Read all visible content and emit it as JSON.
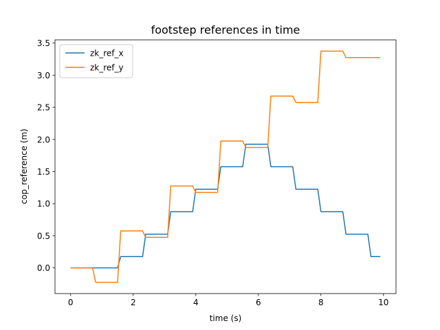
{
  "chart_data": {
    "type": "line",
    "title": "footstep references in time",
    "xlabel": "time (s)",
    "ylabel": "cop_reference (m)",
    "xlim": [
      -0.5,
      10.4
    ],
    "ylim": [
      -0.4,
      3.55
    ],
    "xticks": [
      0,
      2,
      4,
      6,
      8,
      10
    ],
    "xtick_labels": [
      "0",
      "2",
      "4",
      "6",
      "8",
      "10"
    ],
    "yticks": [
      0.0,
      0.5,
      1.0,
      1.5,
      2.0,
      2.5,
      3.0,
      3.5
    ],
    "ytick_labels": [
      "0.0",
      "0.5",
      "1.0",
      "1.5",
      "2.0",
      "2.5",
      "3.0",
      "3.5"
    ],
    "grid": false,
    "legend_position": "upper-left",
    "series": [
      {
        "name": "zk_ref_x",
        "color": "#1f77b4",
        "x": [
          0,
          1.5,
          1.6,
          2.3,
          2.4,
          3.1,
          3.2,
          3.9,
          4.0,
          4.7,
          4.8,
          5.5,
          5.6,
          6.3,
          6.4,
          7.1,
          7.2,
          7.9,
          8.0,
          8.7,
          8.8,
          9.5,
          9.6,
          9.9
        ],
        "y": [
          0,
          0,
          0.175,
          0.175,
          0.525,
          0.525,
          0.875,
          0.875,
          1.225,
          1.225,
          1.575,
          1.575,
          1.925,
          1.925,
          1.575,
          1.575,
          1.225,
          1.225,
          0.875,
          0.875,
          0.525,
          0.525,
          0.175,
          0.175
        ]
      },
      {
        "name": "zk_ref_y",
        "color": "#ff7f0e",
        "x": [
          0,
          0.7,
          0.8,
          1.5,
          1.6,
          2.3,
          2.4,
          3.1,
          3.2,
          3.9,
          4.0,
          4.7,
          4.8,
          5.5,
          5.6,
          6.3,
          6.4,
          7.1,
          7.2,
          7.9,
          8.0,
          8.7,
          8.8,
          9.9
        ],
        "y": [
          0,
          0,
          -0.225,
          -0.225,
          0.575,
          0.575,
          0.475,
          0.475,
          1.275,
          1.275,
          1.175,
          1.175,
          1.975,
          1.975,
          1.875,
          1.875,
          2.675,
          2.675,
          2.575,
          2.575,
          3.375,
          3.375,
          3.275,
          3.275
        ]
      }
    ]
  }
}
